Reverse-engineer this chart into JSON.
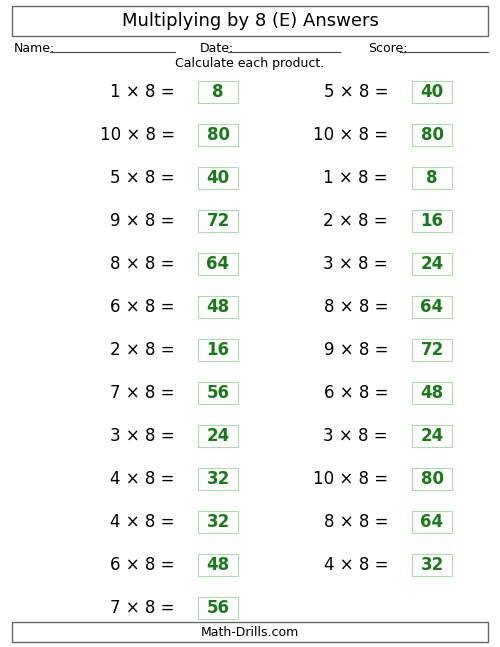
{
  "title": "Multiplying by 8 (E) Answers",
  "name_label": "Name:",
  "date_label": "Date:",
  "score_label": "Score:",
  "instruction": "Calculate each product.",
  "footer": "Math-Drills.com",
  "left_col": [
    {
      "q": "1 × 8 =",
      "a": "8"
    },
    {
      "q": "10 × 8 =",
      "a": "80"
    },
    {
      "q": "5 × 8 =",
      "a": "40"
    },
    {
      "q": "9 × 8 =",
      "a": "72"
    },
    {
      "q": "8 × 8 =",
      "a": "64"
    },
    {
      "q": "6 × 8 =",
      "a": "48"
    },
    {
      "q": "2 × 8 =",
      "a": "16"
    },
    {
      "q": "7 × 8 =",
      "a": "56"
    },
    {
      "q": "3 × 8 =",
      "a": "24"
    },
    {
      "q": "4 × 8 =",
      "a": "32"
    },
    {
      "q": "4 × 8 =",
      "a": "32"
    },
    {
      "q": "6 × 8 =",
      "a": "48"
    },
    {
      "q": "7 × 8 =",
      "a": "56"
    }
  ],
  "right_col": [
    {
      "q": "5 × 8 =",
      "a": "40"
    },
    {
      "q": "10 × 8 =",
      "a": "80"
    },
    {
      "q": "1 × 8 =",
      "a": "8"
    },
    {
      "q": "2 × 8 =",
      "a": "16"
    },
    {
      "q": "3 × 8 =",
      "a": "24"
    },
    {
      "q": "8 × 8 =",
      "a": "64"
    },
    {
      "q": "9 × 8 =",
      "a": "72"
    },
    {
      "q": "6 × 8 =",
      "a": "48"
    },
    {
      "q": "3 × 8 =",
      "a": "24"
    },
    {
      "q": "10 × 8 =",
      "a": "80"
    },
    {
      "q": "8 × 8 =",
      "a": "64"
    },
    {
      "q": "4 × 8 =",
      "a": "32"
    }
  ],
  "bg_color": "#ffffff",
  "text_color": "#000000",
  "answer_color": "#1a7a1a",
  "box_edge_color": "#aaddaa",
  "title_fontsize": 13,
  "label_fontsize": 9,
  "question_fontsize": 12,
  "answer_fontsize": 12,
  "footer_fontsize": 9,
  "fig_width": 5.0,
  "fig_height": 6.47,
  "dpi": 100
}
